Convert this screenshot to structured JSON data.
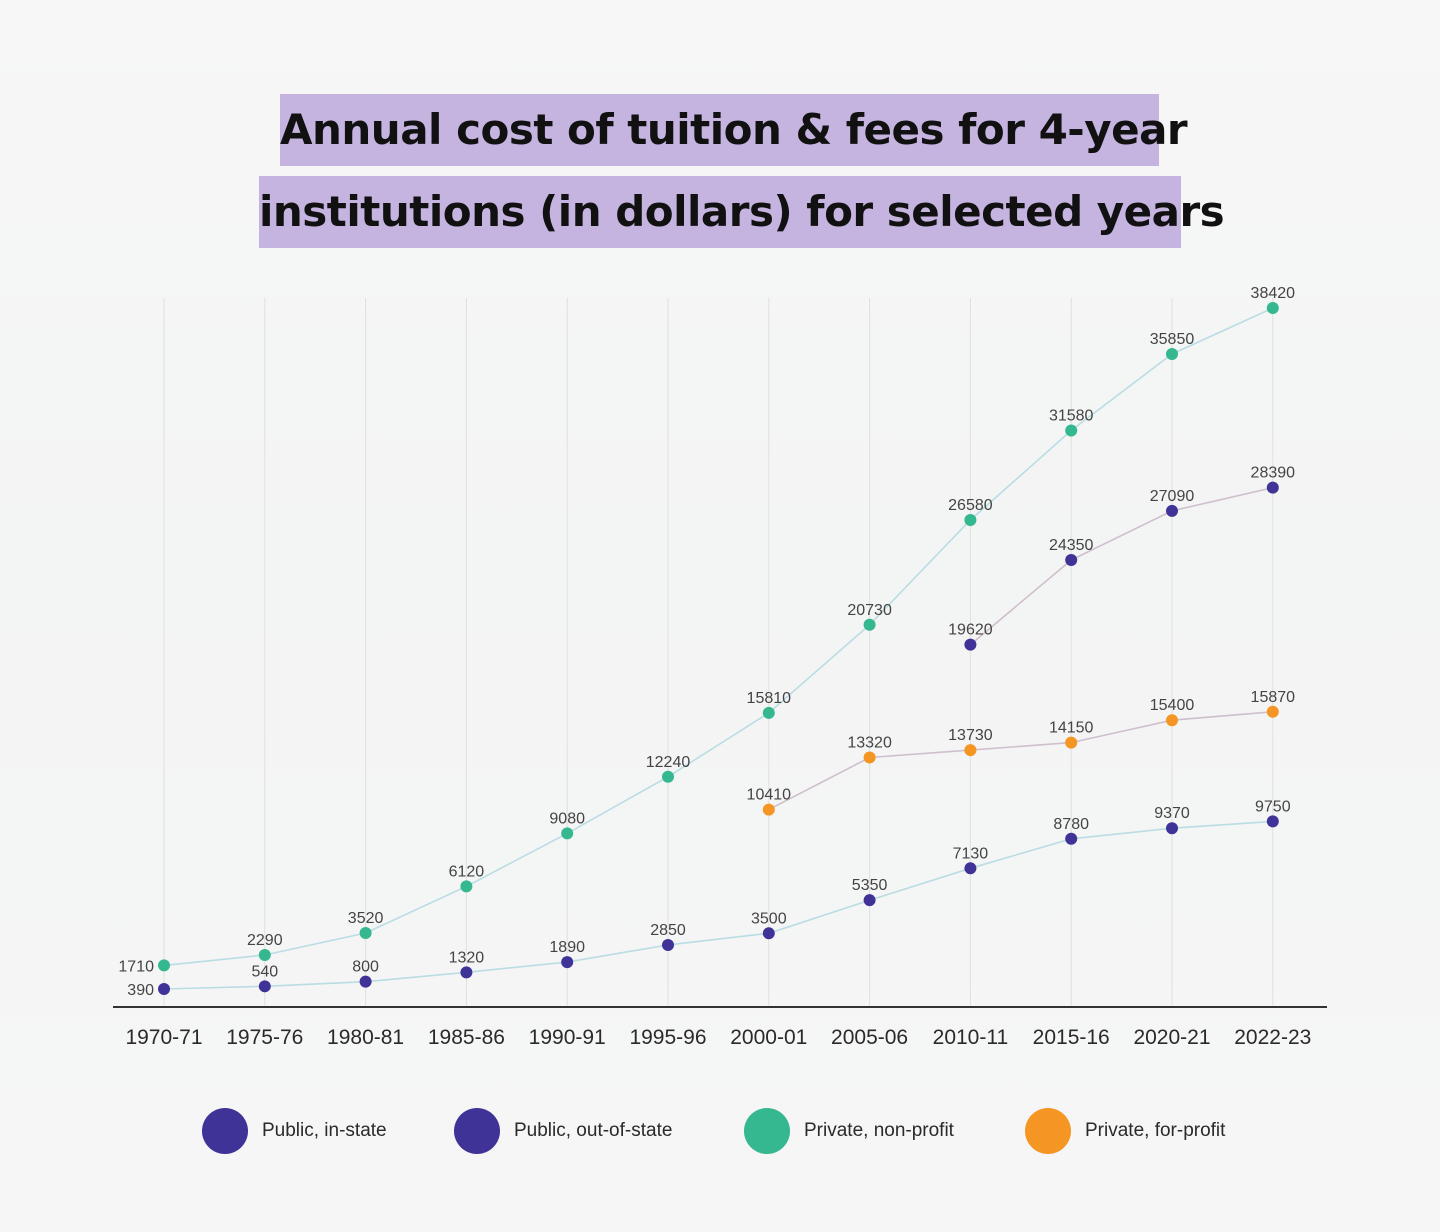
{
  "title": {
    "line1": "Annual cost of tuition & fees for 4-year",
    "line2": "institutions (in dollars) for selected years"
  },
  "colors": {
    "title_band": "#c5b3e0",
    "public": "#3f3397",
    "private_nonprofit": "#35b78f",
    "private_forprofit": "#f59524",
    "line_teal": "#b9dde3",
    "line_mauve": "#cfbfcc",
    "axis": "#333333",
    "grid": "#e0e0e0"
  },
  "legend": [
    {
      "label": "Public, in-state",
      "color": "#3f3397"
    },
    {
      "label": "Public, out-of-state",
      "color": "#3f3397"
    },
    {
      "label": "Private, non-profit",
      "color": "#35b78f"
    },
    {
      "label": "Private, for-profit",
      "color": "#f59524"
    }
  ],
  "chart_data": {
    "type": "line",
    "title": "Annual cost of tuition & fees for 4-year institutions (in dollars) for selected years",
    "x_axis_label": "",
    "y_axis_label": "",
    "categories": [
      "1970-71",
      "1975-76",
      "1980-81",
      "1985-86",
      "1990-91",
      "1995-96",
      "2000-01",
      "2005-06",
      "2010-11",
      "2015-16",
      "2020-21",
      "2022-23"
    ],
    "ylim": [
      0,
      40000
    ],
    "grid": "vertical",
    "legend_position": "bottom",
    "series": [
      {
        "name": "Private, non-profit",
        "color": "#35b78f",
        "line_color": "#b9dde3",
        "values": [
          1710,
          2290,
          3520,
          6120,
          9080,
          12240,
          15810,
          20730,
          26580,
          31580,
          35850,
          38420
        ]
      },
      {
        "name": "Public, out-of-state",
        "color": "#3f3397",
        "line_color": "#cfbfcc",
        "values": [
          null,
          null,
          null,
          null,
          null,
          null,
          null,
          null,
          19620,
          24350,
          27090,
          28390
        ]
      },
      {
        "name": "Private, for-profit",
        "color": "#f59524",
        "line_color": "#cfbfcc",
        "values": [
          null,
          null,
          null,
          null,
          null,
          null,
          10410,
          13320,
          13730,
          14150,
          15400,
          15870
        ]
      },
      {
        "name": "Public, in-state",
        "color": "#3f3397",
        "line_color": "#b9dde3",
        "values": [
          390,
          540,
          800,
          1320,
          1890,
          2850,
          3500,
          5350,
          7130,
          8780,
          9370,
          9750
        ]
      }
    ]
  }
}
